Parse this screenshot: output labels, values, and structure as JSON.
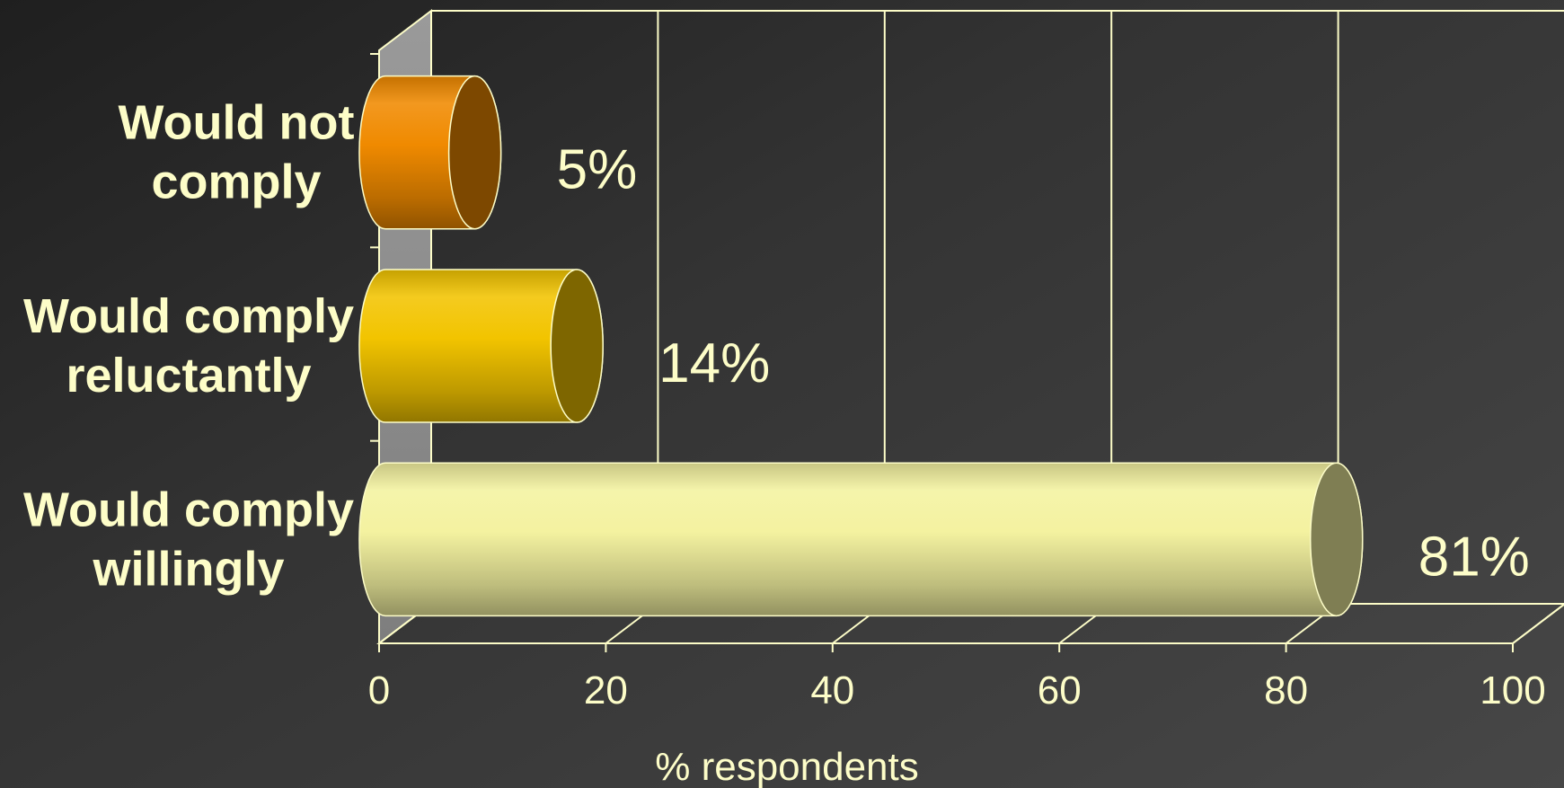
{
  "chart_data": {
    "type": "bar",
    "orientation": "horizontal",
    "style": "3d-cylinder",
    "categories": [
      "Would not\ncomply",
      "Would comply\nreluctantly",
      "Would comply\nwillingly"
    ],
    "values": [
      5,
      14,
      81
    ],
    "data_labels": [
      "5%",
      "14%",
      "81%"
    ],
    "bar_colors": [
      "#f08a00",
      "#f2c400",
      "#f4f2a0"
    ],
    "xlabel": "% respondents",
    "ylabel": "",
    "xlim": [
      0,
      100
    ],
    "xticks": [
      0,
      20,
      40,
      60,
      80,
      100
    ],
    "grid": "vertical",
    "legend": "none",
    "background_color": "#3a3a3a",
    "text_color": "#fdfdc8"
  }
}
